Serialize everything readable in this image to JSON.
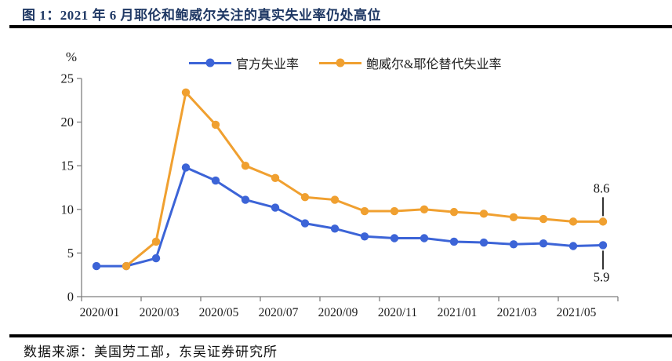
{
  "header": {
    "title": "图 1：2021 年 6 月耶伦和鲍威尔关注的真实失业率仍处高位"
  },
  "footer": {
    "source": "数据来源：美国劳工部，东吴证券研究所"
  },
  "chart_data": {
    "type": "line",
    "y_axis_unit": "%",
    "ylim": [
      0,
      25
    ],
    "y_ticks": [
      0,
      5,
      10,
      15,
      20,
      25
    ],
    "grid": false,
    "legend_position": "top",
    "categories": [
      "2020/01",
      "2020/02",
      "2020/03",
      "2020/04",
      "2020/05",
      "2020/06",
      "2020/07",
      "2020/08",
      "2020/09",
      "2020/10",
      "2020/11",
      "2020/12",
      "2021/01",
      "2021/02",
      "2021/03",
      "2021/04",
      "2021/05",
      "2021/06"
    ],
    "x_tick_labels": [
      "2020/01",
      "2020/03",
      "2020/05",
      "2020/07",
      "2020/09",
      "2020/11",
      "2021/01",
      "2021/03",
      "2021/05"
    ],
    "series": [
      {
        "name": "官方失业率",
        "color": "#3c64d7",
        "values": [
          3.5,
          3.5,
          4.4,
          14.8,
          13.3,
          11.1,
          10.2,
          8.4,
          7.8,
          6.9,
          6.7,
          6.7,
          6.3,
          6.2,
          6.0,
          6.1,
          5.8,
          5.9
        ],
        "end_label": "5.9",
        "end_label_position": "below"
      },
      {
        "name": "鲍威尔&耶伦替代失业率",
        "color": "#f0a030",
        "values": [
          null,
          3.5,
          6.3,
          23.4,
          19.7,
          15.0,
          13.6,
          11.4,
          11.1,
          9.8,
          9.8,
          10.0,
          9.7,
          9.5,
          9.1,
          8.9,
          8.6,
          8.6
        ],
        "end_label": "8.6",
        "end_label_position": "above"
      }
    ]
  }
}
